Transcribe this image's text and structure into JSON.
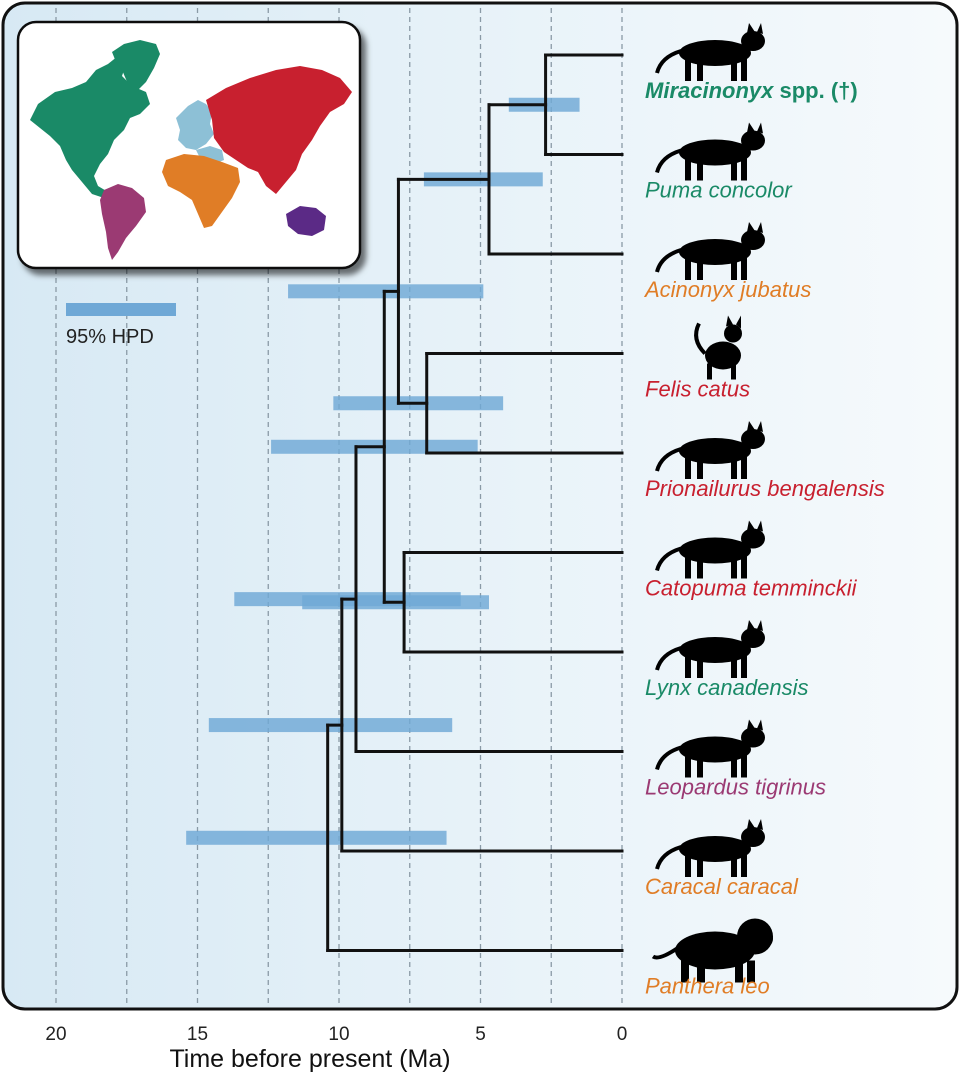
{
  "axis": {
    "title": "Time before present (Ma)",
    "ticks": [
      20,
      15,
      10,
      5,
      0
    ],
    "range": [
      0,
      20
    ],
    "gridlines": [
      20,
      17.5,
      15,
      12.5,
      10,
      7.5,
      5,
      2.5,
      0
    ]
  },
  "legend": {
    "label": "95% HPD",
    "color": "#6fa8d6"
  },
  "colors": {
    "north_america": "#1a8a67",
    "south_america": "#9b3a73",
    "africa": "#e07d26",
    "asia": "#c8202f",
    "europe": "#8dc0d6",
    "australia": "#5b2a86",
    "hpd_bar": "#6fa8d6",
    "branch": "#111111"
  },
  "tips": [
    {
      "id": "miracinonyx",
      "genus": "Miracinonyx",
      "rest": " spp. (†)",
      "region": "north_america",
      "bold": true,
      "silhouette": "cheetah-like-cat-icon"
    },
    {
      "id": "puma",
      "genus": "Puma concolor",
      "rest": "",
      "region": "north_america",
      "bold": false,
      "silhouette": "puma-icon"
    },
    {
      "id": "acinonyx",
      "genus": "Acinonyx jubatus",
      "rest": "",
      "region": "africa",
      "bold": false,
      "silhouette": "cheetah-icon"
    },
    {
      "id": "felis",
      "genus": "Felis catus",
      "rest": "",
      "region": "asia",
      "bold": false,
      "silhouette": "domestic-cat-icon"
    },
    {
      "id": "prionailurus",
      "genus": "Prionailurus bengalensis",
      "rest": "",
      "region": "asia",
      "bold": false,
      "silhouette": "leopard-cat-icon"
    },
    {
      "id": "catopuma",
      "genus": "Catopuma temminckii",
      "rest": "",
      "region": "asia",
      "bold": false,
      "silhouette": "golden-cat-icon"
    },
    {
      "id": "lynx",
      "genus": "Lynx canadensis",
      "rest": "",
      "region": "north_america",
      "bold": false,
      "silhouette": "lynx-icon"
    },
    {
      "id": "leopardus",
      "genus": "Leopardus tigrinus",
      "rest": "",
      "region": "south_america",
      "bold": false,
      "silhouette": "oncilla-icon"
    },
    {
      "id": "caracal",
      "genus": "Caracal caracal",
      "rest": "",
      "region": "africa",
      "bold": false,
      "silhouette": "caracal-icon"
    },
    {
      "id": "panthera",
      "genus": "Panthera leo",
      "rest": "",
      "region": "africa",
      "bold": false,
      "silhouette": "lion-icon"
    }
  ],
  "nodes": [
    {
      "id": "n_mir_puma",
      "age": 2.7,
      "hpd": [
        1.5,
        4.0
      ],
      "children": [
        "miracinonyx",
        "puma"
      ]
    },
    {
      "id": "n_puma_acin",
      "age": 4.7,
      "hpd": [
        2.8,
        7.0
      ],
      "children": [
        "n_mir_puma",
        "acinonyx"
      ]
    },
    {
      "id": "n_fel_prion",
      "age": 6.9,
      "hpd": [
        4.2,
        10.2
      ],
      "children": [
        "felis",
        "prionailurus"
      ]
    },
    {
      "id": "n_puma_felis",
      "age": 7.9,
      "hpd": [
        4.9,
        11.8
      ],
      "children": [
        "n_puma_acin",
        "n_fel_prion"
      ]
    },
    {
      "id": "n_cato_lynx",
      "age": 7.7,
      "hpd": [
        4.7,
        11.3
      ],
      "children": [
        "catopuma",
        "lynx"
      ]
    },
    {
      "id": "n_upper",
      "age": 8.4,
      "hpd": [
        5.1,
        12.4
      ],
      "children": [
        "n_puma_felis",
        "n_cato_lynx"
      ]
    },
    {
      "id": "n_leop",
      "age": 9.4,
      "hpd": [
        5.7,
        13.7
      ],
      "children": [
        "n_upper",
        "leopardus"
      ]
    },
    {
      "id": "n_caracal",
      "age": 9.9,
      "hpd": [
        6.0,
        14.6
      ],
      "children": [
        "n_leop",
        "caracal"
      ]
    },
    {
      "id": "n_root",
      "age": 10.4,
      "hpd": [
        6.2,
        15.4
      ],
      "children": [
        "n_caracal",
        "panthera"
      ]
    }
  ]
}
